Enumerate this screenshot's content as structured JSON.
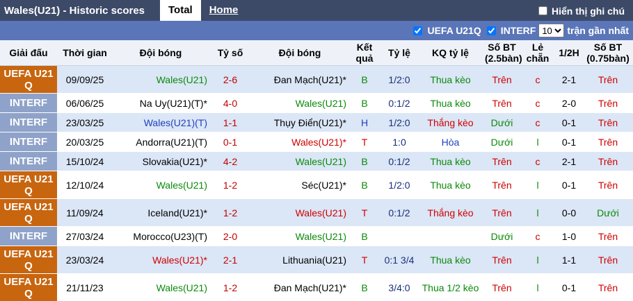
{
  "header": {
    "title": "Wales(U21) - Historic scores",
    "tabs": [
      "Total",
      "Home"
    ],
    "note_toggle": "Hiển thị ghi chú"
  },
  "filters": {
    "leagues": [
      "UEFA U21Q",
      "INTERF"
    ],
    "count": "10",
    "count_label": "trận gần nhất"
  },
  "table": {
    "columns": [
      "Giải đấu",
      "Thời gian",
      "Đội bóng",
      "Tỷ số",
      "Đội bóng",
      "Kết quả",
      "Tỷ lệ",
      "KQ tỷ lệ",
      "Số BT (2.5bàn)",
      "Lẻ chẵn",
      "1/2H",
      "Số BT (0.75bàn)"
    ],
    "league_colors": {
      "UEFA U21 Q": "#c8650f",
      "INTERF": "#8fa2c9"
    },
    "value_colors": {
      "B": "#0a8a0a",
      "H": "#1f3fbf",
      "T": "#d00000",
      "Thua kèo": "#0a8a0a",
      "Thắng kèo": "#d00000",
      "Hòa": "#1f3fbf",
      "Thua 1/2 kèo": "#0a8a0a",
      "Trên": "#d00000",
      "Dưới": "#0a8a0a",
      "c": "#d00000",
      "l": "#0a8a0a"
    },
    "rows": [
      {
        "league": "UEFA U21 Q",
        "date": "09/09/25",
        "home": "Wales(U21)",
        "home_color": "#0a8a0a",
        "score": "2-6",
        "away": "Đan Mạch(U21)*",
        "away_color": "#000000",
        "result": "B",
        "handicap": "1/2:0",
        "handicap_result": "Thua kèo",
        "ou25": "Trên",
        "odd_even": "c",
        "half": "2-1",
        "ou075": "Trên"
      },
      {
        "league": "INTERF",
        "date": "06/06/25",
        "home": "Na Uy(U21)(T)*",
        "home_color": "#000000",
        "score": "4-0",
        "away": "Wales(U21)",
        "away_color": "#0a8a0a",
        "result": "B",
        "handicap": "0:1/2",
        "handicap_result": "Thua kèo",
        "ou25": "Trên",
        "odd_even": "c",
        "half": "2-0",
        "ou075": "Trên"
      },
      {
        "league": "INTERF",
        "date": "23/03/25",
        "home": "Wales(U21)(T)",
        "home_color": "#1f3fbf",
        "score": "1-1",
        "away": "Thụy Điển(U21)*",
        "away_color": "#000000",
        "result": "H",
        "handicap": "1/2:0",
        "handicap_result": "Thắng kèo",
        "ou25": "Dưới",
        "odd_even": "c",
        "half": "0-1",
        "ou075": "Trên"
      },
      {
        "league": "INTERF",
        "date": "20/03/25",
        "home": "Andorra(U21)(T)",
        "home_color": "#000000",
        "score": "0-1",
        "away": "Wales(U21)*",
        "away_color": "#d00000",
        "result": "T",
        "handicap": "1:0",
        "handicap_result": "Hòa",
        "ou25": "Dưới",
        "odd_even": "l",
        "half": "0-1",
        "ou075": "Trên"
      },
      {
        "league": "INTERF",
        "date": "15/10/24",
        "home": "Slovakia(U21)*",
        "home_color": "#000000",
        "score": "4-2",
        "away": "Wales(U21)",
        "away_color": "#0a8a0a",
        "result": "B",
        "handicap": "0:1/2",
        "handicap_result": "Thua kèo",
        "ou25": "Trên",
        "odd_even": "c",
        "half": "2-1",
        "ou075": "Trên"
      },
      {
        "league": "UEFA U21 Q",
        "date": "12/10/24",
        "home": "Wales(U21)",
        "home_color": "#0a8a0a",
        "score": "1-2",
        "away": "Séc(U21)*",
        "away_color": "#000000",
        "result": "B",
        "handicap": "1/2:0",
        "handicap_result": "Thua kèo",
        "ou25": "Trên",
        "odd_even": "l",
        "half": "0-1",
        "ou075": "Trên"
      },
      {
        "league": "UEFA U21 Q",
        "date": "11/09/24",
        "home": "Iceland(U21)*",
        "home_color": "#000000",
        "score": "1-2",
        "away": "Wales(U21)",
        "away_color": "#d00000",
        "result": "T",
        "handicap": "0:1/2",
        "handicap_result": "Thắng kèo",
        "ou25": "Trên",
        "odd_even": "l",
        "half": "0-0",
        "ou075": "Dưới"
      },
      {
        "league": "INTERF",
        "date": "27/03/24",
        "home": "Morocco(U23)(T)",
        "home_color": "#000000",
        "score": "2-0",
        "away": "Wales(U21)",
        "away_color": "#0a8a0a",
        "result": "B",
        "handicap": null,
        "handicap_result": null,
        "ou25": "Dưới",
        "odd_even": "c",
        "half": "1-0",
        "ou075": "Trên"
      },
      {
        "league": "UEFA U21 Q",
        "date": "23/03/24",
        "home": "Wales(U21)*",
        "home_color": "#d00000",
        "score": "2-1",
        "away": "Lithuania(U21)",
        "away_color": "#000000",
        "result": "T",
        "handicap": "0:1 3/4",
        "handicap_result": "Thua kèo",
        "ou25": "Trên",
        "odd_even": "l",
        "half": "1-1",
        "ou075": "Trên"
      },
      {
        "league": "UEFA U21 Q",
        "date": "21/11/23",
        "home": "Wales(U21)",
        "home_color": "#0a8a0a",
        "score": "1-2",
        "away": "Đan Mạch(U21)*",
        "away_color": "#000000",
        "result": "B",
        "handicap": "3/4:0",
        "handicap_result": "Thua 1/2 kèo",
        "ou25": "Trên",
        "odd_even": "l",
        "half": "0-1",
        "ou075": "Trên"
      }
    ]
  }
}
